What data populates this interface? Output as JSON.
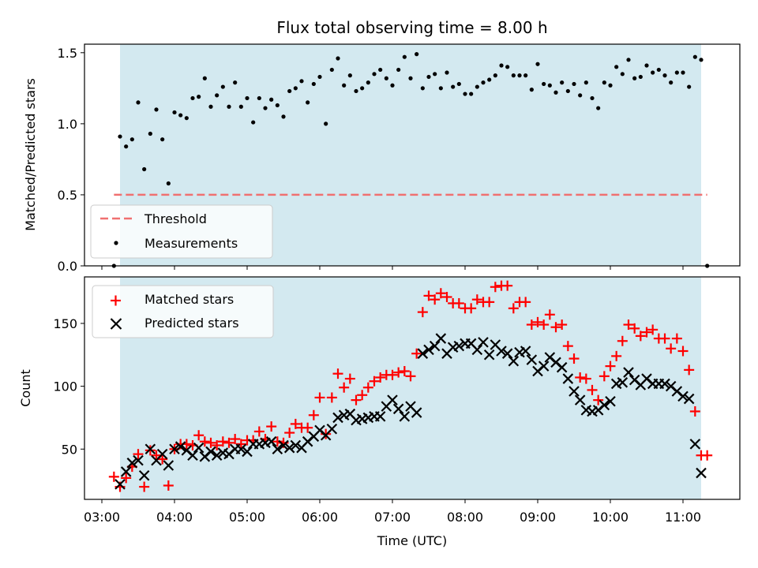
{
  "chart_data": [
    {
      "type": "scatter",
      "title": "Flux total observing time = 8.00 h",
      "xlabel": "",
      "ylabel": "Matched/Predicted stars",
      "ylim": [
        0,
        1.56
      ],
      "yticks": [
        0.0,
        0.5,
        1.0,
        1.5
      ],
      "ytick_labels": [
        "0.0",
        "0.5",
        "1.0",
        "1.5"
      ],
      "grid": false,
      "legend_position": "lower-left",
      "observing_window": [
        "03:15",
        "11:15"
      ],
      "window_color": "#d3e9f0",
      "threshold": {
        "name": "Threshold",
        "value": 0.5,
        "x_range": [
          "03:10",
          "11:20"
        ],
        "color": "#f07070"
      },
      "series": [
        {
          "name": "Measurements",
          "color": "#000000",
          "marker": "dot",
          "x": [
            "03:10",
            "03:15",
            "03:20",
            "03:25",
            "03:30",
            "03:35",
            "03:40",
            "03:45",
            "03:50",
            "03:55",
            "04:00",
            "04:05",
            "04:10",
            "04:15",
            "04:20",
            "04:25",
            "04:30",
            "04:35",
            "04:40",
            "04:45",
            "04:50",
            "04:55",
            "05:00",
            "05:05",
            "05:10",
            "05:15",
            "05:20",
            "05:25",
            "05:30",
            "05:35",
            "05:40",
            "05:45",
            "05:50",
            "05:55",
            "06:00",
            "06:05",
            "06:10",
            "06:15",
            "06:20",
            "06:25",
            "06:30",
            "06:35",
            "06:40",
            "06:45",
            "06:50",
            "06:55",
            "07:00",
            "07:05",
            "07:10",
            "07:15",
            "07:20",
            "07:25",
            "07:30",
            "07:35",
            "07:40",
            "07:45",
            "07:50",
            "07:55",
            "08:00",
            "08:05",
            "08:10",
            "08:15",
            "08:20",
            "08:25",
            "08:30",
            "08:35",
            "08:40",
            "08:45",
            "08:50",
            "08:55",
            "09:00",
            "09:05",
            "09:10",
            "09:15",
            "09:20",
            "09:25",
            "09:30",
            "09:35",
            "09:40",
            "09:45",
            "09:50",
            "09:55",
            "10:00",
            "10:05",
            "10:10",
            "10:15",
            "10:20",
            "10:25",
            "10:30",
            "10:35",
            "10:40",
            "10:45",
            "10:50",
            "10:55",
            "11:00",
            "11:05",
            "11:10",
            "11:15",
            "11:20"
          ],
          "y": [
            0.0,
            0.91,
            0.84,
            0.89,
            1.15,
            0.68,
            0.93,
            1.1,
            0.89,
            0.58,
            1.08,
            1.06,
            1.04,
            1.18,
            1.19,
            1.32,
            1.12,
            1.2,
            1.26,
            1.12,
            1.29,
            1.12,
            1.18,
            1.01,
            1.18,
            1.11,
            1.17,
            1.13,
            1.05,
            1.23,
            1.25,
            1.3,
            1.15,
            1.28,
            1.33,
            1.0,
            1.38,
            1.46,
            1.27,
            1.34,
            1.23,
            1.25,
            1.29,
            1.35,
            1.38,
            1.32,
            1.27,
            1.38,
            1.47,
            1.32,
            1.49,
            1.25,
            1.33,
            1.35,
            1.25,
            1.36,
            1.26,
            1.28,
            1.21,
            1.21,
            1.26,
            1.29,
            1.31,
            1.34,
            1.41,
            1.4,
            1.34,
            1.34,
            1.34,
            1.24,
            1.42,
            1.28,
            1.27,
            1.22,
            1.29,
            1.23,
            1.28,
            1.2,
            1.29,
            1.18,
            1.11,
            1.29,
            1.27,
            1.4,
            1.35,
            1.45,
            1.32,
            1.33,
            1.41,
            1.36,
            1.38,
            1.34,
            1.29,
            1.36,
            1.36,
            1.26,
            1.47,
            1.45,
            0.0
          ]
        }
      ]
    },
    {
      "type": "scatter",
      "title": "",
      "xlabel": "Time (UTC)",
      "ylabel": "Count",
      "ylim": [
        10,
        187
      ],
      "yticks": [
        50,
        100,
        150
      ],
      "ytick_labels": [
        "50",
        "100",
        "150"
      ],
      "xticks": [
        "03:00",
        "04:00",
        "05:00",
        "06:00",
        "07:00",
        "08:00",
        "09:00",
        "10:00",
        "11:00"
      ],
      "grid": false,
      "legend_position": "upper-left",
      "observing_window": [
        "03:15",
        "11:15"
      ],
      "window_color": "#d3e9f0",
      "series": [
        {
          "name": "Matched stars",
          "color": "#ff0000",
          "marker": "plus",
          "x": [
            "03:10",
            "03:15",
            "03:20",
            "03:25",
            "03:30",
            "03:35",
            "03:40",
            "03:45",
            "03:50",
            "03:55",
            "04:00",
            "04:05",
            "04:10",
            "04:15",
            "04:20",
            "04:25",
            "04:30",
            "04:35",
            "04:40",
            "04:45",
            "04:50",
            "04:55",
            "05:00",
            "05:05",
            "05:10",
            "05:15",
            "05:20",
            "05:25",
            "05:30",
            "05:35",
            "05:40",
            "05:45",
            "05:50",
            "05:55",
            "06:00",
            "06:05",
            "06:10",
            "06:15",
            "06:20",
            "06:25",
            "06:30",
            "06:35",
            "06:40",
            "06:45",
            "06:50",
            "06:55",
            "07:00",
            "07:05",
            "07:10",
            "07:15",
            "07:20",
            "07:25",
            "07:30",
            "07:35",
            "07:40",
            "07:45",
            "07:50",
            "07:55",
            "08:00",
            "08:05",
            "08:10",
            "08:15",
            "08:20",
            "08:25",
            "08:30",
            "08:35",
            "08:40",
            "08:45",
            "08:50",
            "08:55",
            "09:00",
            "09:05",
            "09:10",
            "09:15",
            "09:20",
            "09:25",
            "09:30",
            "09:35",
            "09:40",
            "09:45",
            "09:50",
            "09:55",
            "10:00",
            "10:05",
            "10:10",
            "10:15",
            "10:20",
            "10:25",
            "10:30",
            "10:35",
            "10:40",
            "10:45",
            "10:50",
            "10:55",
            "11:00",
            "11:05",
            "11:10",
            "11:15",
            "11:20"
          ],
          "y": [
            28,
            20,
            27,
            36,
            46,
            20,
            49,
            45,
            42,
            21,
            50,
            54,
            54,
            53,
            61,
            56,
            55,
            53,
            56,
            55,
            58,
            54,
            57,
            57,
            64,
            58,
            68,
            56,
            55,
            63,
            70,
            67,
            67,
            77,
            91,
            62,
            91,
            110,
            99,
            106,
            89,
            93,
            99,
            104,
            107,
            109,
            109,
            111,
            112,
            108,
            126,
            159,
            172,
            169,
            174,
            171,
            166,
            166,
            162,
            162,
            169,
            167,
            167,
            179,
            180,
            180,
            162,
            167,
            167,
            149,
            151,
            149,
            157,
            147,
            149,
            132,
            122,
            107,
            106,
            97,
            89,
            108,
            116,
            124,
            136,
            149,
            146,
            140,
            143,
            145,
            138,
            138,
            130,
            138,
            128,
            113,
            80,
            45,
            45
          ]
        },
        {
          "name": "Predicted stars",
          "color": "#000000",
          "marker": "x",
          "x": [
            "03:15",
            "03:20",
            "03:25",
            "03:30",
            "03:35",
            "03:40",
            "03:45",
            "03:50",
            "03:55",
            "04:00",
            "04:05",
            "04:10",
            "04:15",
            "04:20",
            "04:25",
            "04:30",
            "04:35",
            "04:40",
            "04:45",
            "04:50",
            "04:55",
            "05:00",
            "05:05",
            "05:10",
            "05:15",
            "05:20",
            "05:25",
            "05:30",
            "05:35",
            "05:40",
            "05:45",
            "05:50",
            "05:55",
            "06:00",
            "06:05",
            "06:10",
            "06:15",
            "06:20",
            "06:25",
            "06:30",
            "06:35",
            "06:40",
            "06:45",
            "06:50",
            "06:55",
            "07:00",
            "07:05",
            "07:10",
            "07:15",
            "07:20",
            "07:25",
            "07:30",
            "07:35",
            "07:40",
            "07:45",
            "07:50",
            "07:55",
            "08:00",
            "08:05",
            "08:10",
            "08:15",
            "08:20",
            "08:25",
            "08:30",
            "08:35",
            "08:40",
            "08:45",
            "08:50",
            "08:55",
            "09:00",
            "09:05",
            "09:10",
            "09:15",
            "09:20",
            "09:25",
            "09:30",
            "09:35",
            "09:40",
            "09:45",
            "09:50",
            "09:55",
            "10:00",
            "10:05",
            "10:10",
            "10:15",
            "10:20",
            "10:25",
            "10:30",
            "10:35",
            "10:40",
            "10:45",
            "10:50",
            "10:55",
            "11:00",
            "11:05",
            "11:10",
            "11:15"
          ],
          "y": [
            22,
            32,
            39,
            41,
            29,
            50,
            41,
            46,
            37,
            50,
            52,
            49,
            45,
            51,
            44,
            48,
            45,
            47,
            46,
            50,
            50,
            48,
            54,
            54,
            55,
            56,
            50,
            53,
            51,
            53,
            51,
            56,
            60,
            65,
            61,
            66,
            75,
            77,
            78,
            73,
            74,
            75,
            76,
            76,
            84,
            89,
            82,
            76,
            84,
            79,
            126,
            129,
            132,
            138,
            126,
            131,
            132,
            134,
            134,
            129,
            135,
            125,
            133,
            128,
            126,
            120,
            127,
            128,
            121,
            112,
            116,
            123,
            119,
            115,
            106,
            96,
            89,
            81,
            80,
            81,
            85,
            88,
            102,
            103,
            111,
            105,
            101,
            106,
            102,
            102,
            102,
            100,
            96,
            92,
            90,
            54,
            31
          ]
        }
      ]
    }
  ]
}
